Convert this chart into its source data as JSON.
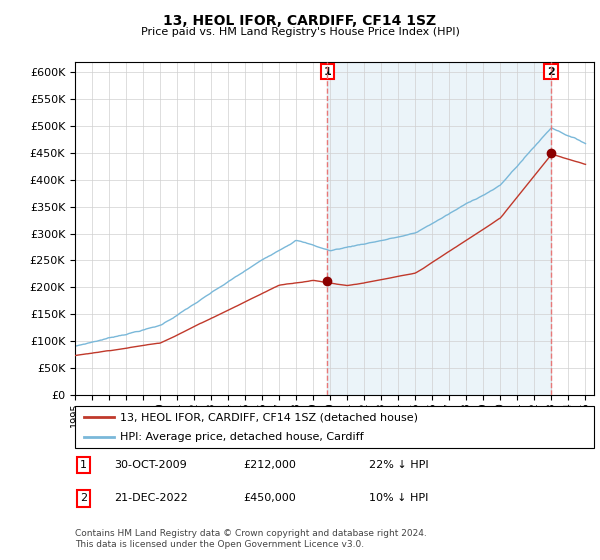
{
  "title": "13, HEOL IFOR, CARDIFF, CF14 1SZ",
  "subtitle": "Price paid vs. HM Land Registry's House Price Index (HPI)",
  "ylabel_ticks": [
    0,
    50000,
    100000,
    150000,
    200000,
    250000,
    300000,
    350000,
    400000,
    450000,
    500000,
    550000,
    600000
  ],
  "ylim": [
    0,
    620000
  ],
  "xlim_start": 1995.0,
  "xlim_end": 2025.5,
  "legend_line1": "13, HEOL IFOR, CARDIFF, CF14 1SZ (detached house)",
  "legend_line2": "HPI: Average price, detached house, Cardiff",
  "transaction1_date": "30-OCT-2009",
  "transaction1_price": "£212,000",
  "transaction1_hpi": "22% ↓ HPI",
  "transaction1_x": 2009.83,
  "transaction1_y": 212000,
  "transaction2_date": "21-DEC-2022",
  "transaction2_price": "£450,000",
  "transaction2_hpi": "10% ↓ HPI",
  "transaction2_x": 2022.97,
  "transaction2_y": 450000,
  "copyright_text": "Contains HM Land Registry data © Crown copyright and database right 2024.\nThis data is licensed under the Open Government Licence v3.0.",
  "hpi_color": "#7ab8d9",
  "price_color": "#c0392b",
  "vline_color": "#e87878",
  "marker_color": "#8b0000",
  "background_color": "#ffffff",
  "grid_color": "#d0d0d0",
  "shade_color": "#ddeeff"
}
